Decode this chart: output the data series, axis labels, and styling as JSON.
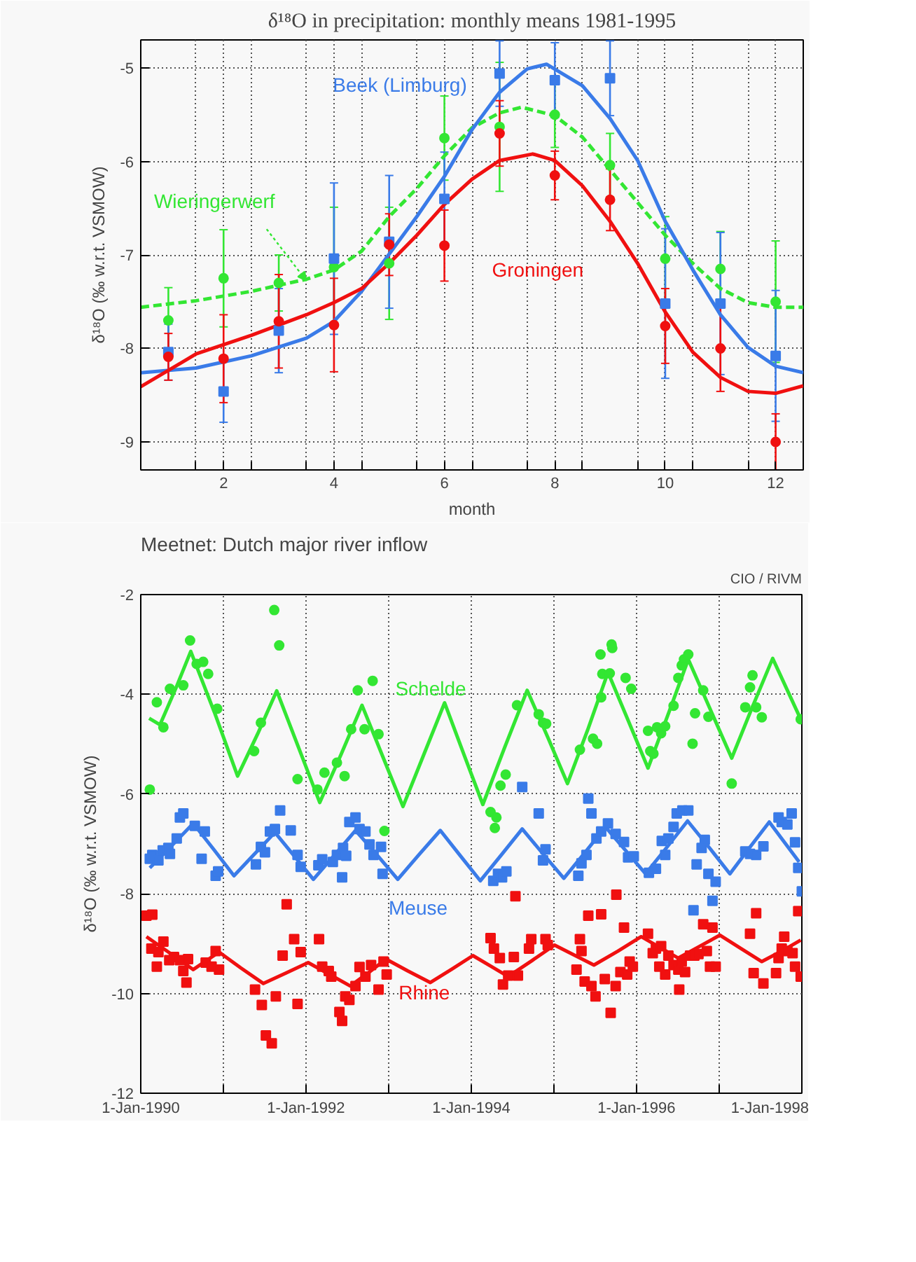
{
  "chart_data": [
    {
      "type": "scatter",
      "title": "δ¹⁸O in precipitation: monthly means 1981-1995",
      "xlabel": "month",
      "ylabel": "δ¹⁸O (‰ w.r.t. VSMOW)",
      "xlim": [
        0.5,
        12.5
      ],
      "ylim": [
        -9.3,
        -4.7
      ],
      "xticks": [
        {
          "value": 1.5,
          "label": null
        },
        2,
        {
          "value": 2.5,
          "label": null
        },
        {
          "value": 3.5,
          "label": null
        },
        4,
        {
          "value": 4.5,
          "label": null
        },
        {
          "value": 5.5,
          "label": null
        },
        6,
        {
          "value": 6.5,
          "label": null
        },
        {
          "value": 7.5,
          "label": null
        },
        8,
        {
          "value": 8.5,
          "label": null
        },
        {
          "value": 9.5,
          "label": null
        },
        10,
        {
          "value": 10.5,
          "label": null
        },
        {
          "value": 11.5,
          "label": null
        },
        12
      ],
      "yticks": [
        -9,
        -8,
        -7,
        -6,
        -5
      ],
      "grid": true,
      "legend": false,
      "series": [
        {
          "name": "Groningen",
          "color": "#f01010",
          "marker": "circle",
          "x": [
            1,
            2,
            3,
            4,
            5,
            6,
            7,
            8,
            9,
            10,
            11,
            12
          ],
          "values": [
            -8.09,
            -8.11,
            -7.71,
            -7.75,
            -6.89,
            -6.9,
            -5.7,
            -6.15,
            -6.41,
            -7.76,
            -8.0,
            -9.0
          ],
          "errors": [
            0.25,
            0.47,
            0.5,
            0.5,
            0.33,
            0.38,
            0.35,
            0.26,
            0.33,
            0.4,
            0.46,
            0.3
          ]
        },
        {
          "name": "Beek (Limburg)",
          "color": "#3a7be8",
          "marker": "square",
          "x": [
            1,
            2,
            3,
            4,
            5,
            6,
            7,
            8,
            9,
            10,
            11,
            12
          ],
          "values": [
            -8.04,
            -8.46,
            -7.81,
            -7.04,
            -6.86,
            -6.4,
            -5.06,
            -5.13,
            -5.11,
            -7.52,
            -7.52,
            -8.08
          ],
          "errors": [
            0.3,
            0.33,
            0.45,
            0.81,
            0.71,
            0.5,
            0.35,
            0.4,
            0.4,
            0.8,
            0.76,
            0.7
          ]
        },
        {
          "name": "Wieringerwerf",
          "color": "#33e633",
          "marker": "circle",
          "x": [
            1,
            2,
            3,
            4,
            5,
            6,
            7,
            8,
            9,
            10,
            11,
            12
          ],
          "values": [
            -7.7,
            -7.25,
            -7.3,
            -7.13,
            -7.09,
            -5.75,
            -5.63,
            -5.5,
            -6.04,
            -7.04,
            -7.15,
            -7.5
          ],
          "errors": [
            0.35,
            0.52,
            0.3,
            0.64,
            0.6,
            0.45,
            0.69,
            0.35,
            0.34,
            0.45,
            0.4,
            0.65
          ]
        },
        {
          "type": "line",
          "color": "#f01010",
          "line_style": "solid",
          "x": [
            0.5,
            1.5,
            2.5,
            3.5,
            4,
            4.5,
            5,
            5.5,
            6,
            6.5,
            7,
            7.6,
            8,
            8.5,
            9,
            9.5,
            10,
            10.5,
            11,
            11.5,
            12,
            12.5
          ],
          "values": [
            -8.41,
            -8.06,
            -7.86,
            -7.64,
            -7.51,
            -7.36,
            -7.09,
            -6.79,
            -6.46,
            -6.19,
            -5.99,
            -5.92,
            -5.99,
            -6.26,
            -6.64,
            -7.09,
            -7.61,
            -8.04,
            -8.31,
            -8.46,
            -8.48,
            -8.4
          ]
        },
        {
          "type": "line",
          "color": "#3a7be8",
          "line_style": "solid",
          "x": [
            0.5,
            1.5,
            2.5,
            3.5,
            4,
            4.5,
            5,
            5.5,
            6,
            6.5,
            7,
            7.5,
            7.85,
            8.5,
            9,
            9.5,
            10,
            10.5,
            11,
            11.5,
            12,
            12.5
          ],
          "values": [
            -8.26,
            -8.21,
            -8.08,
            -7.89,
            -7.71,
            -7.39,
            -6.99,
            -6.59,
            -6.16,
            -5.66,
            -5.26,
            -5.01,
            -4.96,
            -5.19,
            -5.54,
            -5.99,
            -6.64,
            -7.16,
            -7.64,
            -7.99,
            -8.19,
            -8.26
          ]
        },
        {
          "type": "line",
          "color": "#33e633",
          "line_style": "dashed",
          "x": [
            0.5,
            1.5,
            2.5,
            3.5,
            4,
            4.5,
            5,
            5.5,
            6,
            6.5,
            7,
            7.4,
            8,
            8.5,
            9,
            9.5,
            10,
            10.5,
            11,
            11.5,
            12,
            12.5
          ],
          "values": [
            -7.56,
            -7.49,
            -7.39,
            -7.26,
            -7.16,
            -6.96,
            -6.59,
            -6.29,
            -5.94,
            -5.64,
            -5.48,
            -5.42,
            -5.51,
            -5.74,
            -6.09,
            -6.44,
            -6.79,
            -7.09,
            -7.36,
            -7.51,
            -7.56,
            -7.56
          ]
        }
      ]
    },
    {
      "type": "scatter",
      "title": "Meetnet: Dutch major river inflow",
      "ylabel": "δ¹⁸O (‰ w.r.t. VSMOW)",
      "annotations": [
        "CIO / RIVM"
      ],
      "xlim": [
        "1990-01-01",
        "1998-01-01"
      ],
      "ylim": [
        -12,
        -2
      ],
      "xticks": [
        {
          "value": "1990-01-01",
          "label": "1-Jan-1990"
        },
        {
          "value": "1991-01-01",
          "label": null
        },
        {
          "value": "1992-01-01",
          "label": "1-Jan-1992"
        },
        {
          "value": "1993-01-01",
          "label": null
        },
        {
          "value": "1994-01-01",
          "label": "1-Jan-1994"
        },
        {
          "value": "1995-01-01",
          "label": null
        },
        {
          "value": "1996-01-01",
          "label": "1-Jan-1996"
        },
        {
          "value": "1997-01-01",
          "label": null
        },
        {
          "value": "1998-01-01",
          "label": "1-Jan-1998"
        }
      ],
      "yticks": [
        -12,
        -10,
        -8,
        -6,
        -4,
        -2
      ],
      "grid": true,
      "legend": false,
      "series": [
        {
          "name": "Schelde",
          "color": "#33e633",
          "marker": "circle",
          "x": [
            "1990-02-10",
            "1990-03-13",
            "1990-04-11",
            "1990-05-10",
            "1990-07-08",
            "1990-08-07",
            "1990-09-05",
            "1990-10-04",
            "1990-10-26",
            "1990-12-05",
            "1991-05-17",
            "1991-06-16",
            "1991-08-14",
            "1991-09-05",
            "1991-11-25",
            "1992-02-21",
            "1992-03-23",
            "1992-05-17",
            "1992-06-20",
            "1992-07-19",
            "1992-08-17",
            "1992-09-16",
            "1992-10-22",
            "1992-11-17",
            "1992-12-13",
            "1994-03-27",
            "1994-04-22",
            "1994-04-15",
            "1994-05-10",
            "1994-06-02",
            "1994-07-22",
            "1994-10-26",
            "1994-11-14",
            "1994-11-28",
            "1995-04-26",
            "1995-06-23",
            "1995-07-11",
            "1995-07-26",
            "1995-07-29",
            "1995-08-03",
            "1995-09-05",
            "1995-09-13",
            "1995-09-16",
            "1995-11-14",
            "1995-12-09",
            "1996-02-21",
            "1996-03-02",
            "1996-03-16",
            "1996-04-01",
            "1996-04-19",
            "1996-05-07",
            "1996-06-13",
            "1996-07-04",
            "1996-07-19",
            "1996-07-29",
            "1996-08-17",
            "1996-09-05",
            "1996-09-16",
            "1996-10-22",
            "1996-11-14",
            "1997-02-25",
            "1997-04-26",
            "1997-05-17",
            "1997-05-28",
            "1997-06-13",
            "1997-07-08",
            "1997-12-27"
          ],
          "values": [
            -5.91,
            -4.16,
            -4.66,
            -3.89,
            -3.82,
            -2.92,
            -3.39,
            -3.35,
            -3.59,
            -4.29,
            -5.14,
            -4.57,
            -2.31,
            -3.02,
            -5.7,
            -5.91,
            -5.57,
            -5.37,
            -5.64,
            -4.7,
            -3.92,
            -4.7,
            -3.73,
            -4.8,
            -6.74,
            -6.36,
            -6.47,
            -6.68,
            -5.83,
            -5.61,
            -4.22,
            -4.4,
            -4.57,
            -4.59,
            -5.11,
            -4.89,
            -4.99,
            -3.2,
            -4.06,
            -3.59,
            -3.58,
            -3.0,
            -3.07,
            -3.67,
            -3.89,
            -4.73,
            -5.14,
            -5.19,
            -4.66,
            -4.78,
            -4.64,
            -4.23,
            -3.67,
            -3.42,
            -3.3,
            -3.2,
            -4.99,
            -4.38,
            -3.92,
            -4.45,
            -5.79,
            -4.26,
            -3.86,
            -3.62,
            -4.26,
            -4.46,
            -4.5
          ]
        },
        {
          "name": "Meuse",
          "color": "#3a7be8",
          "marker": "square",
          "x": [
            "1990-02-10",
            "1990-02-21",
            "1990-03-20",
            "1990-04-08",
            "1990-05-03",
            "1990-05-10",
            "1990-06-09",
            "1990-06-23",
            "1990-07-08",
            "1990-08-28",
            "1990-10-11",
            "1990-09-27",
            "1990-11-28",
            "1990-12-09",
            "1991-05-25",
            "1991-06-16",
            "1991-07-04",
            "1991-07-26",
            "1991-08-17",
            "1991-09-09",
            "1991-10-26",
            "1991-11-25",
            "1991-12-09",
            "1992-02-25",
            "1992-03-13",
            "1992-04-29",
            "1992-05-17",
            "1992-06-13",
            "1992-06-27",
            "1992-07-11",
            "1992-08-07",
            "1992-08-25",
            "1992-09-20",
            "1992-10-08",
            "1992-10-26",
            "1992-11-28",
            "1992-12-05",
            "1992-06-09",
            "1994-04-08",
            "1994-04-29",
            "1994-05-17",
            "1994-06-05",
            "1994-08-14",
            "1994-10-26",
            "1994-11-14",
            "1994-11-25",
            "1995-04-19",
            "1995-05-03",
            "1995-05-25",
            "1995-06-02",
            "1995-06-16",
            "1995-07-08",
            "1995-07-29",
            "1995-08-28",
            "1995-10-01",
            "1995-11-07",
            "1995-11-25",
            "1995-12-20",
            "1996-02-25",
            "1996-03-27",
            "1996-04-22",
            "1996-05-07",
            "1996-05-21",
            "1996-06-13",
            "1996-06-27",
            "1996-07-22",
            "1996-08-17",
            "1996-09-09",
            "1996-09-23",
            "1996-10-15",
            "1996-10-29",
            "1996-11-14",
            "1996-12-02",
            "1996-12-16",
            "1997-04-26",
            "1997-05-17",
            "1997-06-13",
            "1997-07-15",
            "1997-09-20",
            "1997-10-04",
            "1997-10-29",
            "1997-11-17",
            "1997-12-02",
            "1997-12-16",
            "1998-01-01"
          ],
          "values": [
            -7.3,
            -7.22,
            -7.33,
            -7.13,
            -7.08,
            -7.2,
            -6.89,
            -6.47,
            -6.39,
            -6.64,
            -6.75,
            -7.3,
            -7.64,
            -7.55,
            -7.41,
            -7.06,
            -7.17,
            -6.75,
            -6.7,
            -6.33,
            -6.73,
            -7.22,
            -7.46,
            -7.43,
            -7.31,
            -7.36,
            -7.22,
            -7.08,
            -7.24,
            -6.56,
            -6.47,
            -6.7,
            -6.75,
            -7.01,
            -7.22,
            -7.06,
            -7.6,
            -7.67,
            -7.74,
            -7.6,
            -7.67,
            -7.55,
            -5.86,
            -6.39,
            -7.33,
            -7.11,
            -7.64,
            -7.39,
            -7.22,
            -6.09,
            -6.39,
            -6.89,
            -6.75,
            -6.59,
            -6.8,
            -6.96,
            -7.27,
            -7.25,
            -7.58,
            -7.5,
            -6.94,
            -7.22,
            -6.89,
            -6.66,
            -6.39,
            -6.33,
            -6.33,
            -8.33,
            -7.41,
            -7.08,
            -6.92,
            -7.6,
            -8.14,
            -7.76,
            -7.15,
            -7.2,
            -7.22,
            -7.05,
            -6.47,
            -6.56,
            -6.61,
            -6.39,
            -6.97,
            -7.48,
            -7.95
          ]
        },
        {
          "name": "Rhine",
          "color": "#f01010",
          "marker": "square",
          "x": [
            "1990-01-26",
            "1990-02-21",
            "1990-02-17",
            "1990-03-13",
            "1990-03-20",
            "1990-04-11",
            "1990-05-07",
            "1990-05-28",
            "1990-06-23",
            "1990-07-08",
            "1990-07-22",
            "1990-07-29",
            "1990-10-15",
            "1990-11-10",
            "1990-11-28",
            "1990-12-13",
            "1991-05-21",
            "1991-06-20",
            "1991-07-08",
            "1991-08-03",
            "1991-08-21",
            "1991-09-20",
            "1991-10-08",
            "1991-11-10",
            "1991-11-25",
            "1991-12-09",
            "1992-02-28",
            "1992-03-13",
            "1992-04-11",
            "1992-04-22",
            "1992-05-28",
            "1992-06-09",
            "1992-06-23",
            "1992-07-11",
            "1992-08-07",
            "1992-08-25",
            "1992-09-20",
            "1992-10-15",
            "1992-11-17",
            "1992-12-09",
            "1992-12-23",
            "1994-03-27",
            "1994-04-11",
            "1994-05-07",
            "1994-05-21",
            "1994-06-13",
            "1994-07-08",
            "1994-07-15",
            "1994-07-26",
            "1994-09-13",
            "1994-09-23",
            "1994-11-25",
            "1994-12-05",
            "1995-04-11",
            "1995-04-26",
            "1995-05-03",
            "1995-05-17",
            "1995-06-02",
            "1995-06-16",
            "1995-07-04",
            "1995-07-29",
            "1995-08-14",
            "1995-09-09",
            "1995-10-01",
            "1995-10-04",
            "1995-10-22",
            "1995-11-07",
            "1995-11-21",
            "1995-12-02",
            "1995-12-16",
            "1996-02-21",
            "1996-03-13",
            "1996-03-27",
            "1996-04-11",
            "1996-04-19",
            "1996-05-07",
            "1996-05-21",
            "1996-06-13",
            "1996-07-04",
            "1996-07-08",
            "1996-07-19",
            "1996-08-03",
            "1996-08-25",
            "1996-09-13",
            "1996-10-01",
            "1996-10-22",
            "1996-11-07",
            "1996-11-21",
            "1996-12-02",
            "1996-12-16",
            "1997-05-17",
            "1997-06-02",
            "1997-06-13",
            "1997-07-15",
            "1997-09-09",
            "1997-09-20",
            "1997-10-04",
            "1997-10-15",
            "1997-10-29",
            "1997-11-21",
            "1997-12-02",
            "1997-12-16",
            "1997-12-27"
          ],
          "values": [
            -8.44,
            -8.42,
            -9.1,
            -9.46,
            -9.17,
            -8.96,
            -9.33,
            -9.27,
            -9.33,
            -9.55,
            -9.78,
            -9.31,
            -9.38,
            -9.46,
            -9.15,
            -9.52,
            -9.92,
            -10.23,
            -10.84,
            -11.0,
            -10.06,
            -9.24,
            -8.21,
            -8.91,
            -10.21,
            -9.17,
            -8.91,
            -9.46,
            -9.55,
            -9.66,
            -10.37,
            -10.55,
            -10.06,
            -10.13,
            -9.85,
            -9.47,
            -9.66,
            -9.43,
            -9.92,
            -9.36,
            -9.62,
            -8.89,
            -9.1,
            -9.29,
            -9.82,
            -9.64,
            -9.27,
            -8.05,
            -9.64,
            -9.1,
            -8.91,
            -8.91,
            -9.03,
            -9.52,
            -8.91,
            -9.15,
            -9.76,
            -8.44,
            -9.85,
            -10.06,
            -8.41,
            -9.71,
            -10.39,
            -9.85,
            -8.02,
            -9.57,
            -8.68,
            -9.62,
            -9.36,
            -9.46,
            -8.8,
            -9.19,
            -9.1,
            -9.46,
            -9.05,
            -9.62,
            -9.24,
            -9.43,
            -9.52,
            -9.92,
            -9.36,
            -9.57,
            -9.24,
            -9.24,
            -9.21,
            -8.61,
            -9.15,
            -9.46,
            -8.68,
            -9.46,
            -8.8,
            -9.59,
            -8.39,
            -9.8,
            -9.59,
            -9.29,
            -9.1,
            -8.86,
            -9.15,
            -9.19,
            -9.46,
            -8.35,
            -9.66
          ]
        },
        {
          "type": "line",
          "color": "#33e633",
          "line_style": "solid",
          "x": [
            "1990-02-07",
            "1990-03-27",
            "1990-06-05",
            "1990-08-10",
            "1990-11-25",
            "1991-03-05",
            "1991-06-02",
            "1991-08-25",
            "1991-11-28",
            "1992-03-02",
            "1992-06-05",
            "1992-09-05",
            "1992-12-05",
            "1993-03-05",
            "1993-06-05",
            "1993-09-05",
            "1993-11-28",
            "1994-02-21",
            "1994-05-28",
            "1994-09-05",
            "1994-12-05",
            "1995-03-02",
            "1995-06-02",
            "1995-08-28",
            "1995-11-25",
            "1996-02-21",
            "1996-05-21",
            "1996-08-17",
            "1996-11-21",
            "1997-02-25",
            "1997-05-25",
            "1997-08-25",
            "1997-12-27"
          ],
          "values": [
            -4.48,
            -4.61,
            -3.88,
            -3.14,
            -4.39,
            -5.64,
            -4.79,
            -3.93,
            -5.05,
            -6.17,
            -5.2,
            -4.22,
            -5.24,
            -6.25,
            -5.21,
            -4.17,
            -5.19,
            -6.21,
            -5.07,
            -3.92,
            -4.86,
            -5.79,
            -4.68,
            -3.56,
            -4.52,
            -5.48,
            -4.39,
            -3.3,
            -4.29,
            -5.28,
            -4.28,
            -3.28,
            -4.5
          ]
        },
        {
          "type": "line",
          "color": "#3a7be8",
          "line_style": "solid",
          "x": [
            "1990-02-10",
            "1990-05-17",
            "1990-08-21",
            "1990-11-21",
            "1991-02-17",
            "1991-05-17",
            "1991-08-17",
            "1991-11-10",
            "1992-02-03",
            "1992-05-07",
            "1992-08-07",
            "1992-11-10",
            "1993-02-10",
            "1993-05-14",
            "1993-08-17",
            "1993-11-14",
            "1994-02-10",
            "1994-05-14",
            "1994-08-14",
            "1994-11-14",
            "1995-02-14",
            "1995-05-17",
            "1995-08-17",
            "1995-11-14",
            "1996-02-10",
            "1996-05-14",
            "1996-08-14",
            "1996-11-17",
            "1997-02-17",
            "1997-05-14",
            "1997-08-10",
            "1997-12-20"
          ],
          "values": [
            -7.48,
            -7.04,
            -6.59,
            -7.12,
            -7.64,
            -7.21,
            -6.77,
            -7.24,
            -7.71,
            -7.22,
            -6.73,
            -7.22,
            -7.71,
            -7.22,
            -6.73,
            -7.24,
            -7.74,
            -7.22,
            -6.7,
            -7.2,
            -7.69,
            -7.18,
            -6.66,
            -7.13,
            -7.6,
            -7.07,
            -6.54,
            -7.07,
            -7.6,
            -7.08,
            -6.56,
            -7.36
          ]
        },
        {
          "type": "line",
          "color": "#f01010",
          "line_style": "solid",
          "x": [
            "1990-01-26",
            "1990-05-10",
            "1990-08-21",
            "1990-12-13",
            "1991-03-20",
            "1991-06-27",
            "1991-10-04",
            "1992-01-11",
            "1992-04-15",
            "1992-07-15",
            "1992-10-04",
            "1992-12-20",
            "1993-03-27",
            "1993-07-04",
            "1993-10-08",
            "1994-01-08",
            "1994-03-27",
            "1994-06-13",
            "1994-09-23",
            "1995-01-04",
            "1995-04-01",
            "1995-06-27",
            "1995-10-11",
            "1996-01-22",
            "1996-04-15",
            "1996-07-04",
            "1996-10-04",
            "1997-01-04",
            "1997-04-08",
            "1997-07-08",
            "1997-10-04",
            "1997-12-27"
          ],
          "values": [
            -8.86,
            -9.19,
            -9.52,
            -9.17,
            -9.49,
            -9.8,
            -9.59,
            -9.38,
            -9.62,
            -9.85,
            -9.58,
            -9.31,
            -9.55,
            -9.78,
            -9.51,
            -9.24,
            -9.45,
            -9.66,
            -9.35,
            -9.03,
            -9.23,
            -9.43,
            -9.15,
            -8.86,
            -9.08,
            -9.29,
            -9.06,
            -8.83,
            -9.1,
            -9.36,
            -9.15,
            -8.93
          ]
        }
      ]
    }
  ]
}
